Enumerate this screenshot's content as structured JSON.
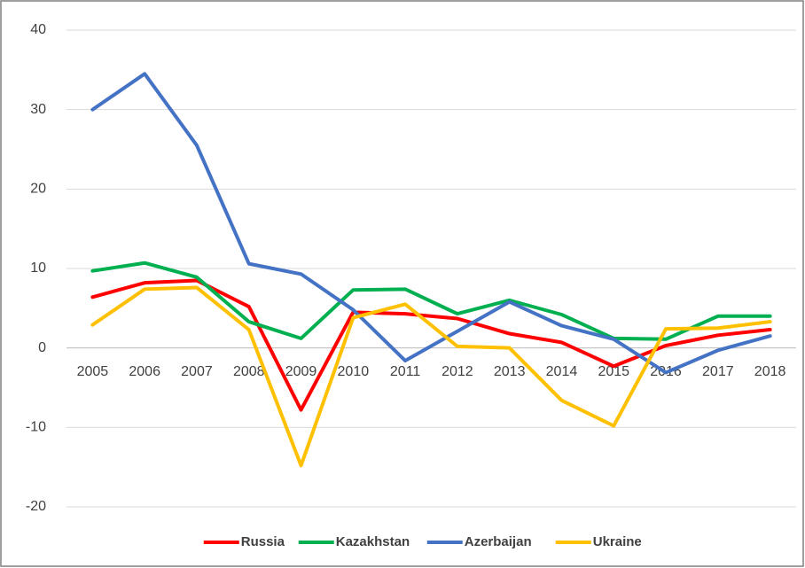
{
  "chart_data": {
    "type": "line",
    "categories": [
      "2005",
      "2006",
      "2007",
      "2008",
      "2009",
      "2010",
      "2011",
      "2012",
      "2013",
      "2014",
      "2015",
      "2016",
      "2017",
      "2018"
    ],
    "series": [
      {
        "name": "Russia",
        "color": "#ff0000",
        "values": [
          6.4,
          8.2,
          8.5,
          5.2,
          -7.8,
          4.5,
          4.3,
          3.7,
          1.8,
          0.7,
          -2.3,
          0.3,
          1.6,
          2.3
        ]
      },
      {
        "name": "Kazakhstan",
        "color": "#00b050",
        "values": [
          9.7,
          10.7,
          8.9,
          3.3,
          1.2,
          7.3,
          7.4,
          4.3,
          6.0,
          4.2,
          1.2,
          1.1,
          4.0,
          4.0
        ]
      },
      {
        "name": "Azerbaijan",
        "color": "#4472c4",
        "values": [
          30.0,
          34.5,
          25.5,
          10.6,
          9.3,
          4.8,
          -1.6,
          2.1,
          5.8,
          2.8,
          1.1,
          -3.1,
          -0.3,
          1.5
        ]
      },
      {
        "name": "Ukraine",
        "color": "#ffc000",
        "values": [
          2.9,
          7.4,
          7.6,
          2.3,
          -14.8,
          3.8,
          5.5,
          0.2,
          0.0,
          -6.6,
          -9.8,
          2.4,
          2.5,
          3.3
        ]
      }
    ],
    "ylim": [
      -20,
      40
    ],
    "yticks": [
      -20,
      -10,
      0,
      10,
      20,
      30,
      40
    ],
    "grid": true,
    "legend": "bottom"
  }
}
